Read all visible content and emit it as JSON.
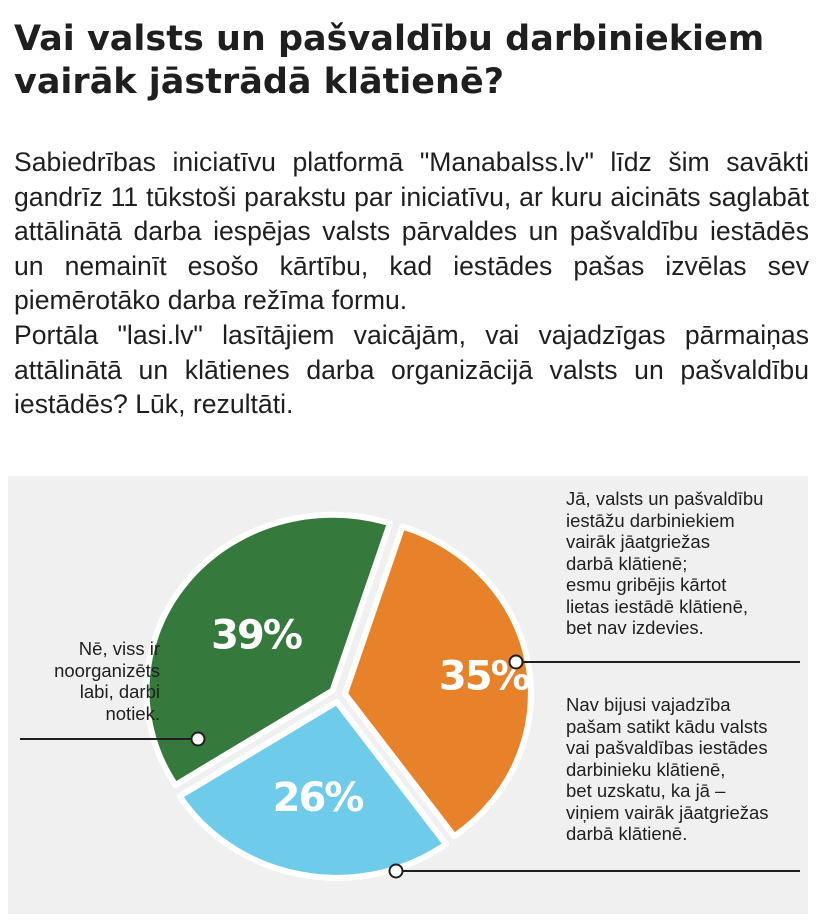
{
  "title_lines": [
    "Vai valsts un pašvaldību darbiniekiem",
    "vairāk jāstrādā klātienē?"
  ],
  "lead_paragraphs": [
    "Sabiedrības iniciatīvu platformā \"Manabalss.lv\" līdz šim savākti gandrīz 11 tūkstoši parakstu par iniciatīvu, ar kuru aicināts saglabāt attālinātā darba iespējas valsts pārvaldes un pašvaldību iestādēs un nemainīt esošo kārtību, kad iestādes pašas izvēlas sev piemērotāko darba režīma formu.",
    "Portāla \"lasi.lv\" lasītājiem vaicājām, vai vajadzīgas pārmaiņas attālinātā un klātienes darba organizācijā valsts un pašvaldību iestādēs? Lūk, rezultāti."
  ],
  "chart_data": {
    "type": "pie",
    "slices": [
      {
        "label_lines": [
          "Jā, valsts un pašvaldību",
          "iestāžu darbiniekiem",
          "vairāk jāatgriežas",
          "darbā klātienē;",
          "esmu gribējis kārtot",
          "lietas iestādē klātienē,",
          "bet nav izdevies."
        ],
        "value": 35,
        "value_label": "35%",
        "color": "#e8822a"
      },
      {
        "label_lines": [
          "Nav bijusi vajadzība",
          "pašam satikt kādu valsts",
          "vai pašvaldības iestādes",
          "darbinieku klātienē,",
          "bet uzskatu, ka jā –",
          "viņiem vairāk jāatgriežas",
          "darbā klātienē."
        ],
        "value": 26,
        "value_label": "26%",
        "color": "#6ecbea"
      },
      {
        "label_lines": [
          "Nē, viss ir",
          "noorganizēts",
          "labi, darbi",
          "notiek."
        ],
        "value": 39,
        "value_label": "39%",
        "color": "#357a3c"
      }
    ]
  }
}
